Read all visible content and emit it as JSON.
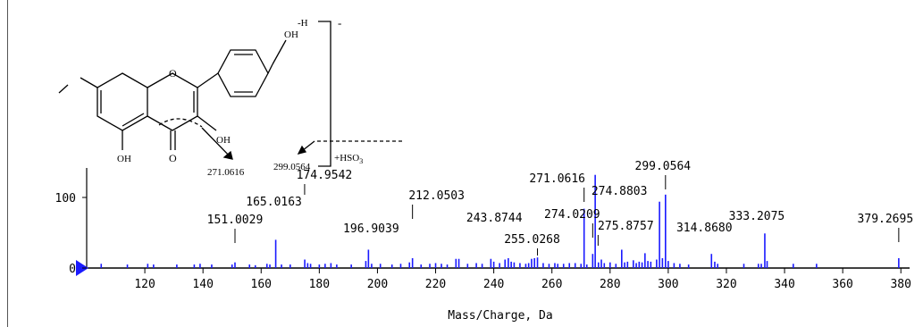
{
  "chart_data": {
    "type": "bar",
    "title": "",
    "xlabel": "Mass/Charge, Da",
    "ylabel": "",
    "xlim": [
      100,
      383
    ],
    "ylim": [
      0,
      140
    ],
    "xticks": [
      120,
      140,
      160,
      180,
      200,
      220,
      240,
      260,
      280,
      300,
      320,
      340,
      360,
      380
    ],
    "yticks": [
      0,
      100
    ],
    "bar_color": "#1a1aff",
    "series": [
      {
        "values": [
          {
            "x": 105,
            "y": 6
          },
          {
            "x": 114,
            "y": 5
          },
          {
            "x": 121,
            "y": 6
          },
          {
            "x": 123,
            "y": 5
          },
          {
            "x": 131,
            "y": 5
          },
          {
            "x": 137,
            "y": 5
          },
          {
            "x": 139,
            "y": 6
          },
          {
            "x": 143,
            "y": 5
          },
          {
            "x": 150,
            "y": 5
          },
          {
            "x": 151.0029,
            "y": 8
          },
          {
            "x": 156,
            "y": 5
          },
          {
            "x": 158,
            "y": 4
          },
          {
            "x": 162,
            "y": 6
          },
          {
            "x": 163,
            "y": 5
          },
          {
            "x": 165.0163,
            "y": 40
          },
          {
            "x": 167,
            "y": 5
          },
          {
            "x": 170,
            "y": 5
          },
          {
            "x": 175,
            "y": 12
          },
          {
            "x": 176,
            "y": 7
          },
          {
            "x": 177,
            "y": 6
          },
          {
            "x": 180,
            "y": 5
          },
          {
            "x": 182,
            "y": 6
          },
          {
            "x": 184,
            "y": 7
          },
          {
            "x": 186,
            "y": 5
          },
          {
            "x": 191,
            "y": 5
          },
          {
            "x": 196,
            "y": 10
          },
          {
            "x": 196.9039,
            "y": 26
          },
          {
            "x": 198,
            "y": 6
          },
          {
            "x": 201,
            "y": 6
          },
          {
            "x": 205,
            "y": 5
          },
          {
            "x": 208,
            "y": 6
          },
          {
            "x": 211,
            "y": 8
          },
          {
            "x": 212.0503,
            "y": 14
          },
          {
            "x": 215,
            "y": 5
          },
          {
            "x": 218,
            "y": 6
          },
          {
            "x": 220,
            "y": 7
          },
          {
            "x": 222,
            "y": 6
          },
          {
            "x": 224,
            "y": 5
          },
          {
            "x": 227,
            "y": 13
          },
          {
            "x": 228,
            "y": 13
          },
          {
            "x": 231,
            "y": 6
          },
          {
            "x": 234,
            "y": 7
          },
          {
            "x": 236,
            "y": 6
          },
          {
            "x": 239,
            "y": 13
          },
          {
            "x": 240,
            "y": 9
          },
          {
            "x": 242,
            "y": 7
          },
          {
            "x": 243.8744,
            "y": 12
          },
          {
            "x": 245,
            "y": 14
          },
          {
            "x": 246,
            "y": 9
          },
          {
            "x": 247,
            "y": 8
          },
          {
            "x": 249,
            "y": 7
          },
          {
            "x": 251,
            "y": 6
          },
          {
            "x": 252,
            "y": 7
          },
          {
            "x": 253,
            "y": 13
          },
          {
            "x": 254,
            "y": 14
          },
          {
            "x": 255.0268,
            "y": 15
          },
          {
            "x": 257,
            "y": 7
          },
          {
            "x": 259,
            "y": 6
          },
          {
            "x": 261,
            "y": 7
          },
          {
            "x": 262,
            "y": 6
          },
          {
            "x": 264,
            "y": 6
          },
          {
            "x": 266,
            "y": 7
          },
          {
            "x": 268,
            "y": 7
          },
          {
            "x": 270,
            "y": 6
          },
          {
            "x": 271.0616,
            "y": 84
          },
          {
            "x": 272,
            "y": 5
          },
          {
            "x": 274.0209,
            "y": 20
          },
          {
            "x": 274.8803,
            "y": 132
          },
          {
            "x": 276,
            "y": 8
          },
          {
            "x": 277,
            "y": 12
          },
          {
            "x": 278,
            "y": 7
          },
          {
            "x": 280,
            "y": 8
          },
          {
            "x": 282,
            "y": 6
          },
          {
            "x": 284,
            "y": 26
          },
          {
            "x": 285,
            "y": 8
          },
          {
            "x": 286,
            "y": 9
          },
          {
            "x": 288,
            "y": 11
          },
          {
            "x": 289,
            "y": 7
          },
          {
            "x": 290,
            "y": 9
          },
          {
            "x": 291,
            "y": 8
          },
          {
            "x": 292,
            "y": 21
          },
          {
            "x": 293,
            "y": 10
          },
          {
            "x": 294,
            "y": 9
          },
          {
            "x": 296,
            "y": 12
          },
          {
            "x": 297,
            "y": 94
          },
          {
            "x": 298,
            "y": 14
          },
          {
            "x": 299.0564,
            "y": 104
          },
          {
            "x": 300,
            "y": 10
          },
          {
            "x": 302,
            "y": 7
          },
          {
            "x": 304,
            "y": 6
          },
          {
            "x": 307,
            "y": 5
          },
          {
            "x": 314.868,
            "y": 20
          },
          {
            "x": 316,
            "y": 9
          },
          {
            "x": 317,
            "y": 6
          },
          {
            "x": 326,
            "y": 6
          },
          {
            "x": 331,
            "y": 6
          },
          {
            "x": 332,
            "y": 6
          },
          {
            "x": 333.2075,
            "y": 49
          },
          {
            "x": 334,
            "y": 10
          },
          {
            "x": 343,
            "y": 6
          },
          {
            "x": 351,
            "y": 6
          },
          {
            "x": 379.2695,
            "y": 14
          }
        ]
      }
    ],
    "peak_labels": [
      {
        "text": "151.0029",
        "x": 151.0029,
        "tick": true
      },
      {
        "text": "165.0163",
        "x": 165.0163,
        "tick": false
      },
      {
        "text": "174.9542",
        "x": 174.9542,
        "tick": true
      },
      {
        "text": "196.9039",
        "x": 196.9039,
        "tick": false
      },
      {
        "text": "212.0503",
        "x": 212.0503,
        "tick": true
      },
      {
        "text": "243.8744",
        "x": 243.8744,
        "tick": false
      },
      {
        "text": "255.0268",
        "x": 255.0268,
        "tick": true
      },
      {
        "text": "271.0616",
        "x": 271.0616,
        "tick": true
      },
      {
        "text": "274.0209",
        "x": 274.0209,
        "tick": true
      },
      {
        "text": "274.8803",
        "x": 274.8803,
        "tick": false
      },
      {
        "text": "275.8757",
        "x": 275.8757,
        "tick": true
      },
      {
        "text": "299.0564",
        "x": 299.0564,
        "tick": true
      },
      {
        "text": "314.8680",
        "x": 314.868,
        "tick": false
      },
      {
        "text": "333.2075",
        "x": 333.2075,
        "tick": false
      },
      {
        "text": "379.2695",
        "x": 379.2695,
        "tick": true
      }
    ]
  },
  "structure": {
    "oh_top": "OH",
    "oh_3": "OH",
    "oh_5": "OH",
    "o_ring": "O",
    "o_carbonyl": "O",
    "minus_h": "-H",
    "charge": "-",
    "hso3": "+HSO",
    "hso3_sub": "3",
    "frag_271": "271.0616",
    "frag_299": "299.0564"
  }
}
